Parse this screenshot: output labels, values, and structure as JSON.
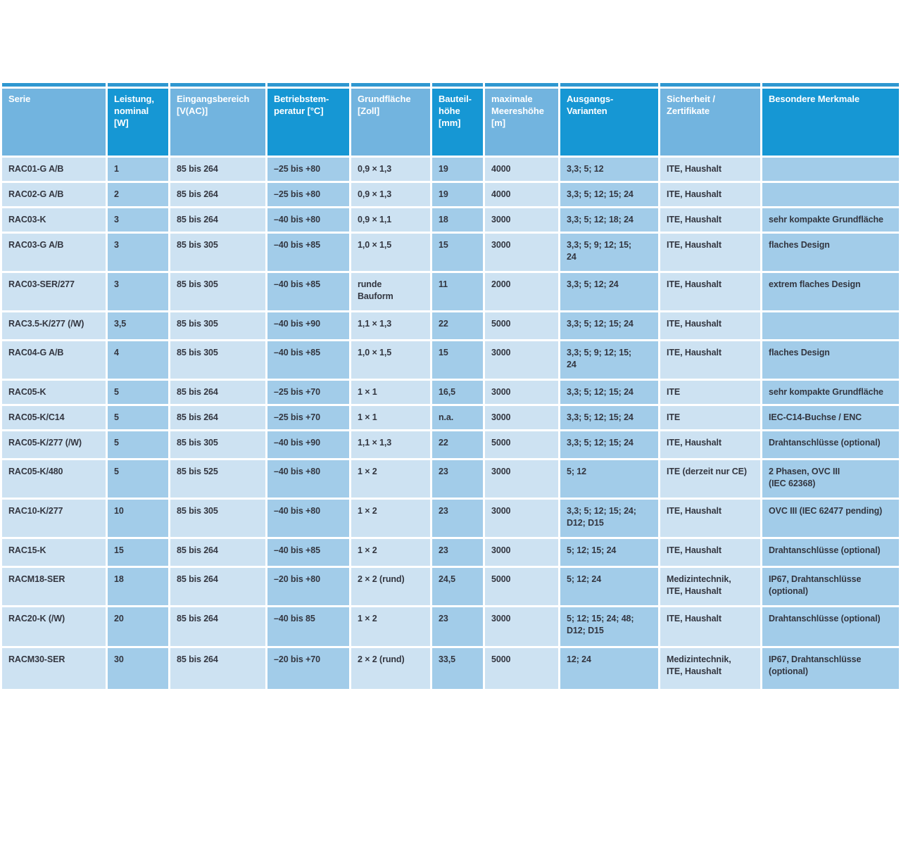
{
  "table": {
    "colors": {
      "top_bar": "#2e97d0",
      "header_light": "#72b4df",
      "header_dark": "#1697d4",
      "cell_light": "#cde2f2",
      "cell_dark": "#a2cce9",
      "header_text": "#ffffff",
      "cell_text": "#333640"
    },
    "columns": [
      {
        "id": "serie",
        "shade": "light",
        "label": "Serie"
      },
      {
        "id": "leistung",
        "shade": "dark",
        "label": "Leistung,\nnominal\n[W]"
      },
      {
        "id": "eingangsbereich",
        "shade": "light",
        "label": "Eingangsbereich\n[V(AC)]"
      },
      {
        "id": "betriebstemperatur",
        "shade": "dark",
        "label": "Betriebstem-\nperatur [°C]"
      },
      {
        "id": "grundflaeche",
        "shade": "light",
        "label": "Grundfläche\n[Zoll]"
      },
      {
        "id": "bauteilhoehe",
        "shade": "dark",
        "label": "Bauteil-\nhöhe\n[mm]"
      },
      {
        "id": "meereshoehe",
        "shade": "light",
        "label": "maximale\nMeereshöhe\n[m]"
      },
      {
        "id": "ausgangsvarianten",
        "shade": "dark",
        "label": "Ausgangs-\nVarianten"
      },
      {
        "id": "sicherheit",
        "shade": "light",
        "label": "Sicherheit /\nZertifikate"
      },
      {
        "id": "merkmale",
        "shade": "dark",
        "label": "Besondere Merkmale"
      }
    ],
    "rows": [
      [
        "RAC01-G A/B",
        "1",
        "85 bis 264",
        "–25 bis +80",
        "0,9 × 1,3",
        "19",
        "4000",
        "3,3; 5; 12",
        "ITE, Haushalt",
        ""
      ],
      [
        "RAC02-G A/B",
        "2",
        "85 bis 264",
        "–25 bis +80",
        "0,9 × 1,3",
        "19",
        "4000",
        "3,3; 5; 12; 15; 24",
        "ITE, Haushalt",
        ""
      ],
      [
        "RAC03-K",
        "3",
        "85 bis 264",
        "–40 bis +80",
        "0,9 × 1,1",
        "18",
        "3000",
        "3,3; 5; 12; 18; 24",
        "ITE, Haushalt",
        "sehr kompakte Grundfläche"
      ],
      [
        "RAC03-G A/B",
        "3",
        "85 bis 305",
        "–40 bis +85",
        "1,0 × 1,5",
        "15",
        "3000",
        "3,3; 5; 9; 12; 15;\n24",
        "ITE, Haushalt",
        "flaches Design"
      ],
      [
        "RAC03-SER/277",
        "3",
        "85 bis 305",
        "–40 bis +85",
        "runde\nBauform",
        "11",
        "2000",
        "3,3; 5; 12; 24",
        "ITE, Haushalt",
        "extrem flaches Design"
      ],
      [
        "RAC3.5-K/277 (/W)",
        "3,5",
        "85 bis 305",
        "–40 bis +90",
        "1,1 × 1,3",
        "22",
        "5000",
        "3,3; 5; 12; 15; 24",
        "ITE, Haushalt",
        ""
      ],
      [
        "RAC04-G A/B",
        "4",
        "85 bis 305",
        "–40 bis +85",
        "1,0 × 1,5",
        "15",
        "3000",
        "3,3; 5; 9; 12; 15;\n24",
        "ITE, Haushalt",
        "flaches Design"
      ],
      [
        "RAC05-K",
        "5",
        "85 bis 264",
        "–25 bis +70",
        "1 × 1",
        "16,5",
        "3000",
        "3,3; 5; 12; 15; 24",
        "ITE",
        "sehr kompakte Grundfläche"
      ],
      [
        "RAC05-K/C14",
        "5",
        "85 bis 264",
        "–25 bis +70",
        "1 × 1",
        "n.a.",
        "3000",
        "3,3; 5; 12; 15; 24",
        "ITE",
        "IEC-C14-Buchse / ENC"
      ],
      [
        "RAC05-K/277 (/W)",
        "5",
        "85 bis 305",
        "–40 bis +90",
        "1,1 × 1,3",
        "22",
        "5000",
        "3,3; 5; 12; 15; 24",
        "ITE, Haushalt",
        "Drahtanschlüsse (optional)"
      ],
      [
        "RAC05-K/480",
        "5",
        "85 bis 525",
        "–40 bis +80",
        "1 × 2",
        "23",
        "3000",
        "5; 12",
        "ITE (derzeit nur CE)",
        "2 Phasen, OVC III\n(IEC 62368)"
      ],
      [
        "RAC10-K/277",
        "10",
        "85 bis 305",
        "–40 bis +80",
        "1 × 2",
        "23",
        "3000",
        "3,3; 5; 12; 15; 24;\nD12; D15",
        "ITE, Haushalt",
        "OVC III (IEC 62477 pending)"
      ],
      [
        "RAC15-K",
        "15",
        "85 bis 264",
        "–40 bis +85",
        "1 × 2",
        "23",
        "3000",
        "5; 12; 15; 24",
        "ITE, Haushalt",
        "Drahtanschlüsse (optional)"
      ],
      [
        "RACM18-SER",
        "18",
        "85 bis 264",
        "–20 bis +80",
        "2 × 2 (rund)",
        "24,5",
        "5000",
        "5; 12; 24",
        "Medizintechnik,\nITE, Haushalt",
        "IP67, Drahtanschlüsse\n(optional)"
      ],
      [
        "RAC20-K (/W)",
        "20",
        "85 bis 264",
        "–40 bis 85",
        "1 × 2",
        "23",
        "3000",
        "5; 12; 15; 24; 48;\nD12; D15",
        "ITE, Haushalt",
        "Drahtanschlüsse (optional)"
      ],
      [
        "RACM30-SER",
        "30",
        "85 bis 264",
        "–20 bis +70",
        "2 × 2 (rund)",
        "33,5",
        "5000",
        "12; 24",
        "Medizintechnik,\nITE, Haushalt",
        "IP67, Drahtanschlüsse\n(optional)"
      ]
    ]
  }
}
